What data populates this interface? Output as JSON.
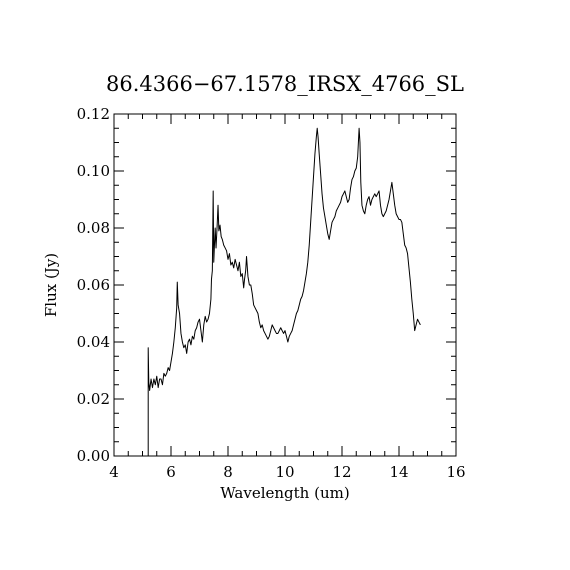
{
  "chart_data": {
    "type": "line",
    "title": "86.4366−67.1578_IRSX_4766_SL",
    "xlabel": "Wavelength (um)",
    "ylabel": "Flux (Jy)",
    "xlim": [
      4,
      16
    ],
    "ylim": [
      0.0,
      0.12
    ],
    "x_ticks": [
      4,
      6,
      8,
      10,
      12,
      14,
      16
    ],
    "x_tick_labels": [
      "4",
      "6",
      "8",
      "10",
      "12",
      "14",
      "16"
    ],
    "y_ticks": [
      0.0,
      0.02,
      0.04,
      0.06,
      0.08,
      0.1,
      0.12
    ],
    "y_tick_labels": [
      "0.00",
      "0.02",
      "0.04",
      "0.06",
      "0.08",
      "0.10",
      "0.12"
    ],
    "grid": false,
    "series": [
      {
        "color": "#000000",
        "points": [
          [
            5.2,
            0.0
          ],
          [
            5.2,
            0.038
          ],
          [
            5.22,
            0.026
          ],
          [
            5.25,
            0.023
          ],
          [
            5.3,
            0.027
          ],
          [
            5.35,
            0.024
          ],
          [
            5.4,
            0.027
          ],
          [
            5.45,
            0.025
          ],
          [
            5.5,
            0.028
          ],
          [
            5.55,
            0.024
          ],
          [
            5.6,
            0.027
          ],
          [
            5.65,
            0.027
          ],
          [
            5.7,
            0.025
          ],
          [
            5.75,
            0.029
          ],
          [
            5.8,
            0.028
          ],
          [
            5.85,
            0.029
          ],
          [
            5.9,
            0.031
          ],
          [
            5.95,
            0.03
          ],
          [
            6.0,
            0.033
          ],
          [
            6.05,
            0.036
          ],
          [
            6.1,
            0.04
          ],
          [
            6.15,
            0.045
          ],
          [
            6.2,
            0.052
          ],
          [
            6.22,
            0.061
          ],
          [
            6.25,
            0.053
          ],
          [
            6.3,
            0.05
          ],
          [
            6.35,
            0.043
          ],
          [
            6.4,
            0.04
          ],
          [
            6.45,
            0.038
          ],
          [
            6.5,
            0.039
          ],
          [
            6.55,
            0.036
          ],
          [
            6.6,
            0.04
          ],
          [
            6.65,
            0.041
          ],
          [
            6.7,
            0.039
          ],
          [
            6.75,
            0.042
          ],
          [
            6.8,
            0.041
          ],
          [
            6.85,
            0.044
          ],
          [
            6.9,
            0.045
          ],
          [
            6.95,
            0.047
          ],
          [
            7.0,
            0.048
          ],
          [
            7.05,
            0.044
          ],
          [
            7.1,
            0.04
          ],
          [
            7.15,
            0.046
          ],
          [
            7.2,
            0.049
          ],
          [
            7.25,
            0.047
          ],
          [
            7.3,
            0.048
          ],
          [
            7.35,
            0.05
          ],
          [
            7.4,
            0.055
          ],
          [
            7.42,
            0.062
          ],
          [
            7.45,
            0.065
          ],
          [
            7.48,
            0.093
          ],
          [
            7.5,
            0.068
          ],
          [
            7.55,
            0.08
          ],
          [
            7.58,
            0.073
          ],
          [
            7.62,
            0.081
          ],
          [
            7.65,
            0.088
          ],
          [
            7.68,
            0.079
          ],
          [
            7.72,
            0.081
          ],
          [
            7.76,
            0.077
          ],
          [
            7.8,
            0.076
          ],
          [
            7.85,
            0.074
          ],
          [
            7.9,
            0.073
          ],
          [
            7.95,
            0.072
          ],
          [
            8.0,
            0.069
          ],
          [
            8.05,
            0.071
          ],
          [
            8.1,
            0.067
          ],
          [
            8.15,
            0.068
          ],
          [
            8.2,
            0.066
          ],
          [
            8.25,
            0.069
          ],
          [
            8.3,
            0.067
          ],
          [
            8.35,
            0.065
          ],
          [
            8.4,
            0.068
          ],
          [
            8.45,
            0.063
          ],
          [
            8.5,
            0.064
          ],
          [
            8.55,
            0.059
          ],
          [
            8.58,
            0.062
          ],
          [
            8.62,
            0.065
          ],
          [
            8.65,
            0.07
          ],
          [
            8.7,
            0.063
          ],
          [
            8.75,
            0.06
          ],
          [
            8.8,
            0.06
          ],
          [
            8.85,
            0.057
          ],
          [
            8.9,
            0.053
          ],
          [
            8.95,
            0.052
          ],
          [
            9.0,
            0.051
          ],
          [
            9.05,
            0.05
          ],
          [
            9.1,
            0.047
          ],
          [
            9.15,
            0.045
          ],
          [
            9.2,
            0.046
          ],
          [
            9.25,
            0.044
          ],
          [
            9.3,
            0.043
          ],
          [
            9.35,
            0.042
          ],
          [
            9.4,
            0.041
          ],
          [
            9.45,
            0.042
          ],
          [
            9.5,
            0.044
          ],
          [
            9.55,
            0.046
          ],
          [
            9.6,
            0.045
          ],
          [
            9.65,
            0.044
          ],
          [
            9.7,
            0.043
          ],
          [
            9.75,
            0.043
          ],
          [
            9.8,
            0.044
          ],
          [
            9.85,
            0.045
          ],
          [
            9.9,
            0.044
          ],
          [
            9.95,
            0.043
          ],
          [
            10.0,
            0.044
          ],
          [
            10.05,
            0.042
          ],
          [
            10.1,
            0.04
          ],
          [
            10.15,
            0.042
          ],
          [
            10.2,
            0.043
          ],
          [
            10.25,
            0.044
          ],
          [
            10.3,
            0.046
          ],
          [
            10.35,
            0.048
          ],
          [
            10.4,
            0.05
          ],
          [
            10.45,
            0.051
          ],
          [
            10.5,
            0.053
          ],
          [
            10.55,
            0.055
          ],
          [
            10.6,
            0.056
          ],
          [
            10.65,
            0.058
          ],
          [
            10.7,
            0.061
          ],
          [
            10.75,
            0.064
          ],
          [
            10.8,
            0.068
          ],
          [
            10.85,
            0.074
          ],
          [
            10.9,
            0.082
          ],
          [
            10.95,
            0.09
          ],
          [
            11.0,
            0.098
          ],
          [
            11.05,
            0.106
          ],
          [
            11.1,
            0.112
          ],
          [
            11.13,
            0.115
          ],
          [
            11.16,
            0.112
          ],
          [
            11.2,
            0.106
          ],
          [
            11.25,
            0.099
          ],
          [
            11.3,
            0.092
          ],
          [
            11.35,
            0.087
          ],
          [
            11.4,
            0.084
          ],
          [
            11.45,
            0.081
          ],
          [
            11.5,
            0.078
          ],
          [
            11.55,
            0.076
          ],
          [
            11.6,
            0.079
          ],
          [
            11.65,
            0.082
          ],
          [
            11.7,
            0.083
          ],
          [
            11.75,
            0.084
          ],
          [
            11.8,
            0.086
          ],
          [
            11.85,
            0.087
          ],
          [
            11.9,
            0.088
          ],
          [
            11.95,
            0.089
          ],
          [
            12.0,
            0.091
          ],
          [
            12.05,
            0.092
          ],
          [
            12.1,
            0.093
          ],
          [
            12.15,
            0.091
          ],
          [
            12.2,
            0.089
          ],
          [
            12.25,
            0.09
          ],
          [
            12.3,
            0.094
          ],
          [
            12.35,
            0.097
          ],
          [
            12.4,
            0.098
          ],
          [
            12.45,
            0.1
          ],
          [
            12.5,
            0.101
          ],
          [
            12.55,
            0.105
          ],
          [
            12.58,
            0.111
          ],
          [
            12.6,
            0.115
          ],
          [
            12.63,
            0.11
          ],
          [
            12.66,
            0.096
          ],
          [
            12.7,
            0.088
          ],
          [
            12.75,
            0.086
          ],
          [
            12.8,
            0.085
          ],
          [
            12.85,
            0.088
          ],
          [
            12.9,
            0.09
          ],
          [
            12.95,
            0.091
          ],
          [
            13.0,
            0.088
          ],
          [
            13.05,
            0.09
          ],
          [
            13.1,
            0.091
          ],
          [
            13.15,
            0.092
          ],
          [
            13.2,
            0.091
          ],
          [
            13.25,
            0.092
          ],
          [
            13.3,
            0.093
          ],
          [
            13.35,
            0.088
          ],
          [
            13.4,
            0.085
          ],
          [
            13.45,
            0.084
          ],
          [
            13.5,
            0.085
          ],
          [
            13.55,
            0.086
          ],
          [
            13.6,
            0.088
          ],
          [
            13.65,
            0.09
          ],
          [
            13.7,
            0.093
          ],
          [
            13.75,
            0.096
          ],
          [
            13.8,
            0.092
          ],
          [
            13.85,
            0.088
          ],
          [
            13.9,
            0.085
          ],
          [
            13.95,
            0.084
          ],
          [
            14.0,
            0.083
          ],
          [
            14.05,
            0.083
          ],
          [
            14.1,
            0.082
          ],
          [
            14.15,
            0.078
          ],
          [
            14.2,
            0.074
          ],
          [
            14.25,
            0.073
          ],
          [
            14.3,
            0.071
          ],
          [
            14.35,
            0.066
          ],
          [
            14.4,
            0.061
          ],
          [
            14.45,
            0.055
          ],
          [
            14.5,
            0.05
          ],
          [
            14.55,
            0.044
          ],
          [
            14.6,
            0.046
          ],
          [
            14.65,
            0.048
          ],
          [
            14.7,
            0.047
          ],
          [
            14.75,
            0.046
          ]
        ]
      }
    ]
  }
}
